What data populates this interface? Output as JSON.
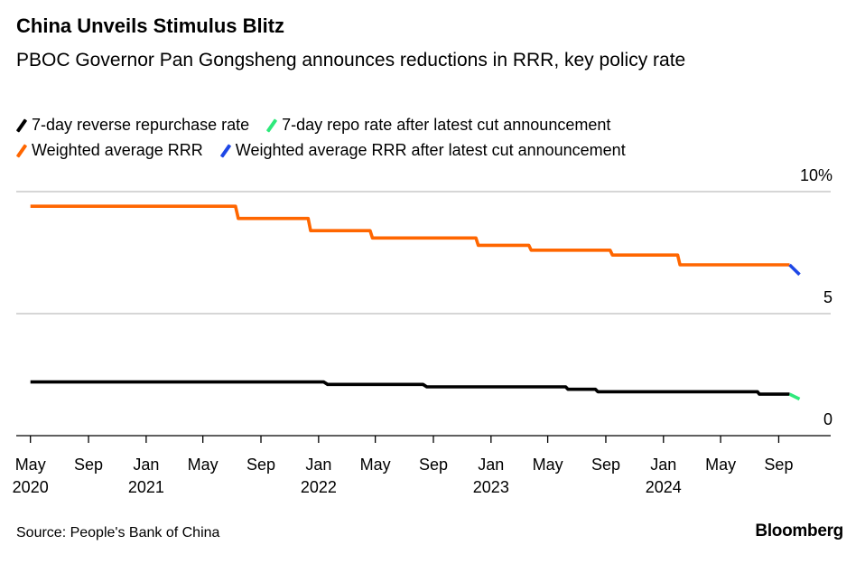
{
  "title": "China Unveils Stimulus Blitz",
  "subtitle": "PBOC Governor Pan Gongsheng announces reductions in RRR, key policy rate",
  "source": "Source: People's Bank of China",
  "brand": "Bloomberg",
  "legend": [
    {
      "label": "7-day reverse repurchase rate",
      "color": "#000000"
    },
    {
      "label": "7-day repo rate after latest cut announcement",
      "color": "#2ee97b"
    },
    {
      "label": "Weighted average RRR",
      "color": "#ff6600"
    },
    {
      "label": "Weighted average RRR after latest cut announcement",
      "color": "#1e47e6"
    }
  ],
  "chart_data": {
    "type": "line",
    "title": "China Unveils Stimulus Blitz",
    "ylim": [
      0,
      10
    ],
    "yticks": [
      {
        "value": 10,
        "label": "10%"
      },
      {
        "value": 5,
        "label": "5"
      },
      {
        "value": 0,
        "label": "0"
      }
    ],
    "xlim": [
      "2020-04-01",
      "2024-12-20"
    ],
    "xticks": [
      {
        "date": "2020-05-01",
        "label": "May",
        "year": "2020"
      },
      {
        "date": "2020-09-01",
        "label": "Sep",
        "year": ""
      },
      {
        "date": "2021-01-01",
        "label": "Jan",
        "year": "2021"
      },
      {
        "date": "2021-05-01",
        "label": "May",
        "year": ""
      },
      {
        "date": "2021-09-01",
        "label": "Sep",
        "year": ""
      },
      {
        "date": "2022-01-01",
        "label": "Jan",
        "year": "2022"
      },
      {
        "date": "2022-05-01",
        "label": "May",
        "year": ""
      },
      {
        "date": "2022-09-01",
        "label": "Sep",
        "year": ""
      },
      {
        "date": "2023-01-01",
        "label": "Jan",
        "year": "2023"
      },
      {
        "date": "2023-05-01",
        "label": "May",
        "year": ""
      },
      {
        "date": "2023-09-01",
        "label": "Sep",
        "year": ""
      },
      {
        "date": "2024-01-01",
        "label": "Jan",
        "year": "2024"
      },
      {
        "date": "2024-05-01",
        "label": "May",
        "year": ""
      },
      {
        "date": "2024-09-01",
        "label": "Sep",
        "year": ""
      }
    ],
    "grid": true,
    "series": [
      {
        "name": "Weighted average RRR",
        "color": "#ff6600",
        "points": [
          [
            "2020-05-01",
            9.4
          ],
          [
            "2021-07-09",
            9.4
          ],
          [
            "2021-07-15",
            8.9
          ],
          [
            "2021-12-10",
            8.9
          ],
          [
            "2021-12-15",
            8.4
          ],
          [
            "2022-04-20",
            8.4
          ],
          [
            "2022-04-25",
            8.1
          ],
          [
            "2022-11-30",
            8.1
          ],
          [
            "2022-12-05",
            7.8
          ],
          [
            "2023-03-22",
            7.8
          ],
          [
            "2023-03-27",
            7.6
          ],
          [
            "2023-09-10",
            7.6
          ],
          [
            "2023-09-15",
            7.4
          ],
          [
            "2024-01-31",
            7.4
          ],
          [
            "2024-02-05",
            7.0
          ],
          [
            "2024-09-24",
            7.0
          ]
        ]
      },
      {
        "name": "Weighted average RRR after latest cut announcement",
        "color": "#1e47e6",
        "points": [
          [
            "2024-09-24",
            7.0
          ],
          [
            "2024-10-15",
            6.6
          ]
        ]
      },
      {
        "name": "7-day reverse repurchase rate",
        "color": "#000000",
        "points": [
          [
            "2020-05-01",
            2.2
          ],
          [
            "2022-01-12",
            2.2
          ],
          [
            "2022-01-20",
            2.1
          ],
          [
            "2022-08-10",
            2.1
          ],
          [
            "2022-08-18",
            2.0
          ],
          [
            "2023-06-08",
            2.0
          ],
          [
            "2023-06-13",
            1.9
          ],
          [
            "2023-08-10",
            1.9
          ],
          [
            "2023-08-15",
            1.8
          ],
          [
            "2024-07-18",
            1.8
          ],
          [
            "2024-07-22",
            1.7
          ],
          [
            "2024-09-24",
            1.7
          ]
        ]
      },
      {
        "name": "7-day repo rate after latest cut announcement",
        "color": "#2ee97b",
        "points": [
          [
            "2024-09-24",
            1.7
          ],
          [
            "2024-10-15",
            1.5
          ]
        ]
      }
    ]
  }
}
